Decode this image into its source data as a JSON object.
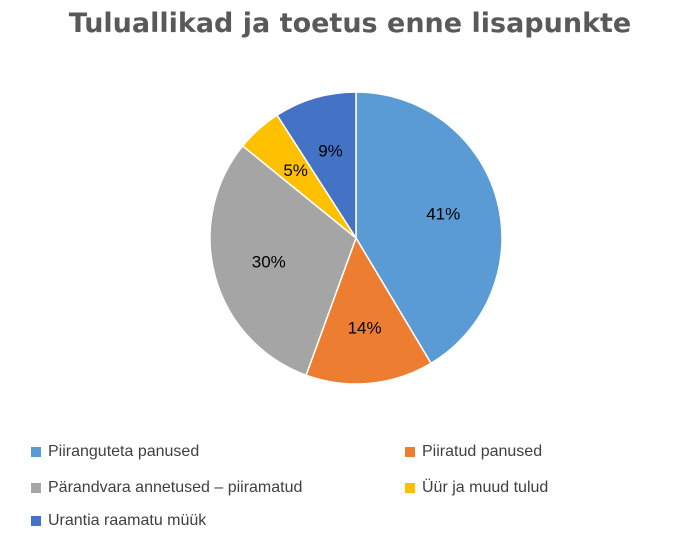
{
  "chart_data": {
    "type": "pie",
    "title": "Tuluallikad ja toetus enne lisapunkte",
    "slices": [
      {
        "label": "Piiranguteta panused",
        "value": 41,
        "display": "41%",
        "color": "#5B9BD5"
      },
      {
        "label": "Piiratud panused",
        "value": 14,
        "display": "14%",
        "color": "#ED7D31"
      },
      {
        "label": "Pärandvara annetused – piiramatud",
        "value": 30,
        "display": "30%",
        "color": "#A5A5A5"
      },
      {
        "label": "Üür ja muud tulud",
        "value": 5,
        "display": "5%",
        "color": "#FFC000"
      },
      {
        "label": "Urantia raamatu müük",
        "value": 9,
        "display": "9%",
        "color": "#4472C4"
      }
    ],
    "legend_position": "bottom"
  }
}
